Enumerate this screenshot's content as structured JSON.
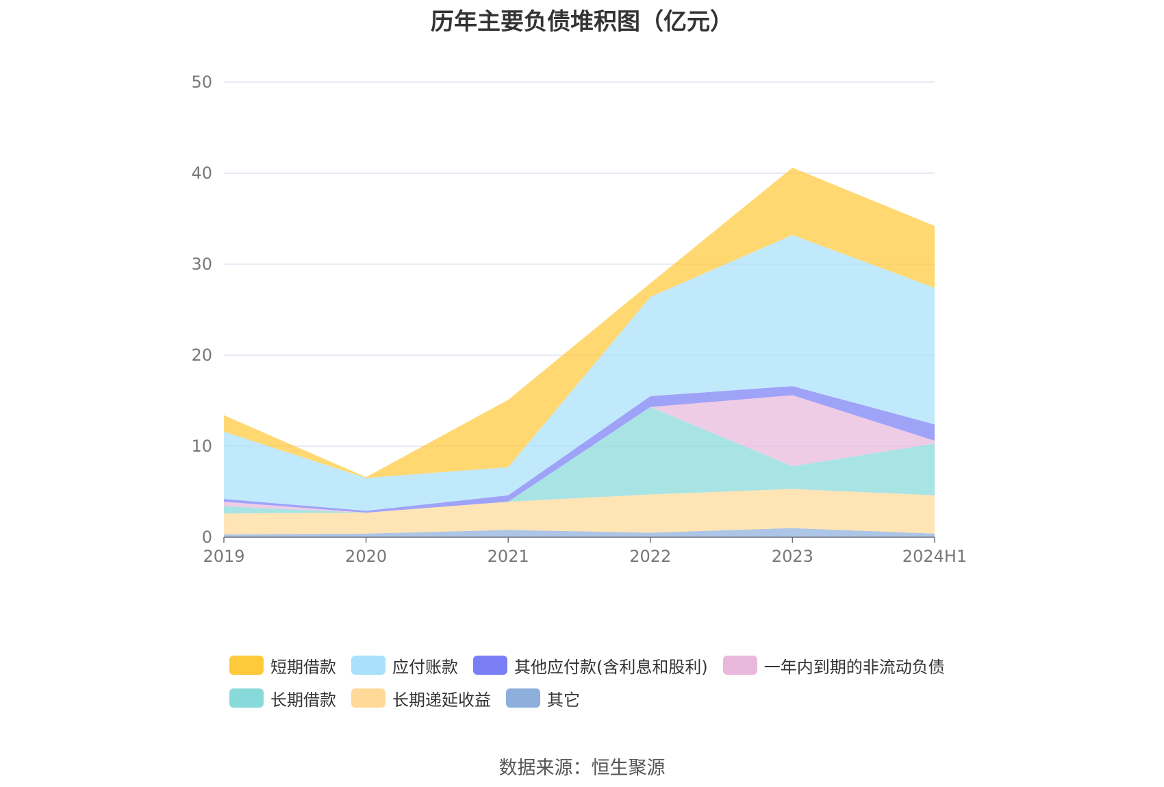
{
  "chart_data": {
    "type": "area",
    "stacked": true,
    "title": "历年主要负债堆积图（亿元）",
    "categories": [
      "2019",
      "2020",
      "2021",
      "2022",
      "2023",
      "2024H1"
    ],
    "yticks": [
      0,
      10,
      20,
      30,
      40,
      50
    ],
    "ylim": [
      0,
      50
    ],
    "grid": true,
    "legend_position": "bottom",
    "series": [
      {
        "name": "其它",
        "color": "#8EAEDC",
        "values": [
          0.3,
          0.4,
          0.8,
          0.5,
          1.0,
          0.4
        ]
      },
      {
        "name": "长期递延收益",
        "color": "#FFD998",
        "values": [
          2.3,
          2.3,
          3.1,
          4.2,
          4.3,
          4.2
        ]
      },
      {
        "name": "长期借款",
        "color": "#88D9D9",
        "values": [
          0.8,
          0.0,
          0.0,
          9.6,
          2.5,
          5.7
        ]
      },
      {
        "name": "一年内到期的非流动负债",
        "color": "#E9B9DC",
        "values": [
          0.5,
          0.0,
          0.0,
          0.0,
          7.8,
          0.3
        ]
      },
      {
        "name": "其他应付款(含利息和股利)",
        "color": "#7A7FF5",
        "values": [
          0.3,
          0.2,
          0.7,
          1.2,
          1.0,
          1.8
        ]
      },
      {
        "name": "应付账款",
        "color": "#A9E0FB",
        "values": [
          7.4,
          3.6,
          3.1,
          10.9,
          16.6,
          15.0
        ]
      },
      {
        "name": "短期借款",
        "color": "#FFC93C",
        "values": [
          1.8,
          0.1,
          7.4,
          1.5,
          7.4,
          6.8
        ]
      }
    ],
    "legend_order": [
      "短期借款",
      "应付账款",
      "其他应付款(含利息和股利)",
      "一年内到期的非流动负债",
      "长期借款",
      "长期递延收益",
      "其它"
    ],
    "source": "数据来源：恒生聚源"
  }
}
